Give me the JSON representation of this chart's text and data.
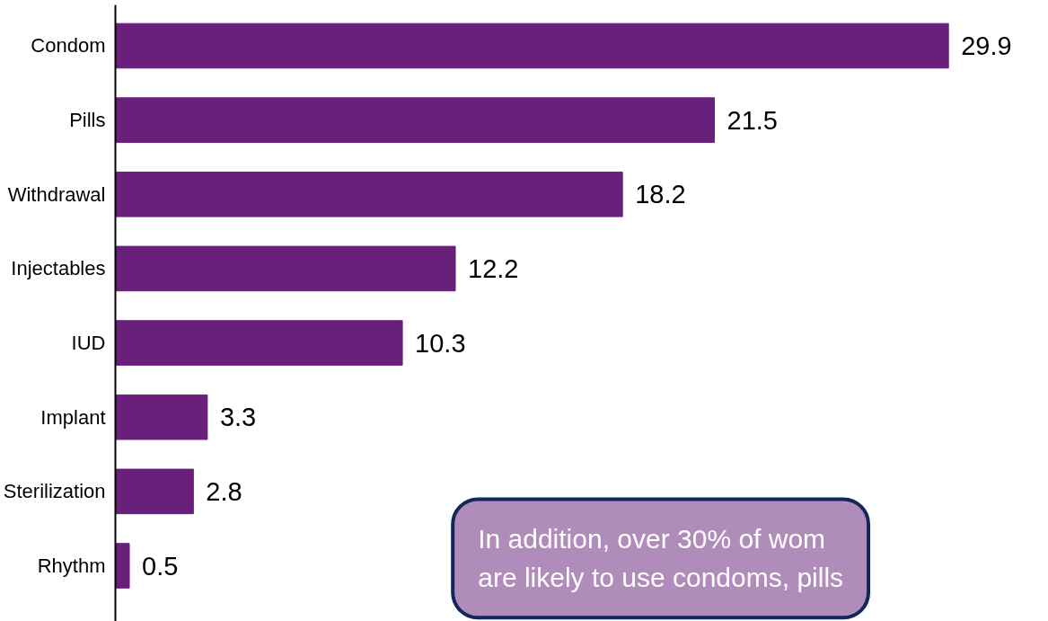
{
  "chart_data": {
    "type": "bar",
    "orientation": "horizontal",
    "categories": [
      "Condom",
      "Pills",
      "Withdrawal",
      "Injectables",
      "IUD",
      "Implant",
      "Sterilization",
      "Rhythm"
    ],
    "values": [
      29.9,
      21.5,
      18.2,
      12.2,
      10.3,
      3.3,
      2.8,
      0.5
    ],
    "color": "#68207a",
    "data_labels": true,
    "grid": false,
    "annotations": [
      "In addition, over 30% of wom",
      "are likely to use condoms, pills"
    ]
  }
}
